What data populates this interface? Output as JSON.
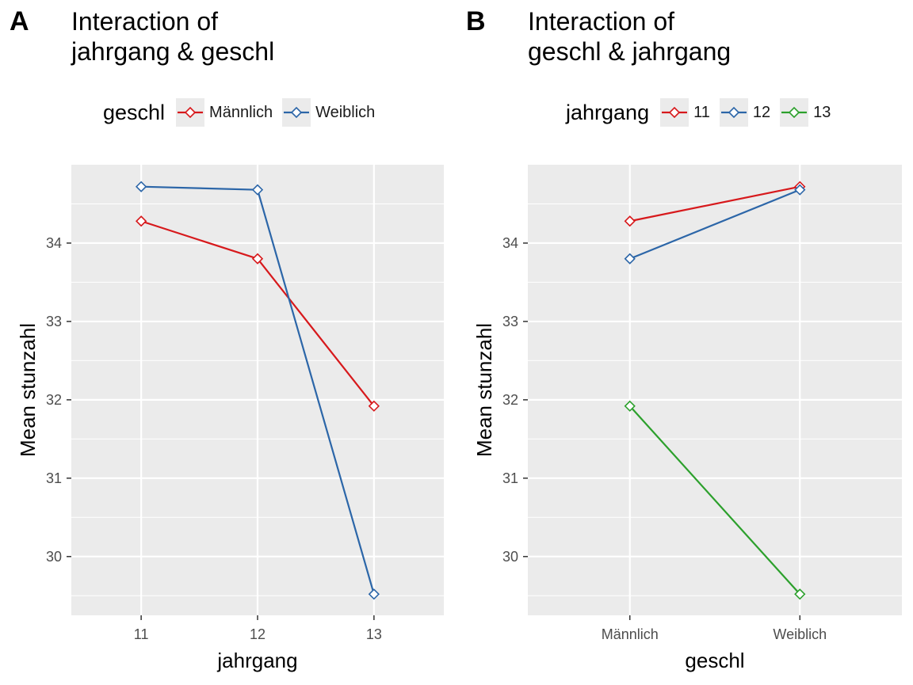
{
  "chart_data": [
    {
      "panel_tag": "A",
      "type": "line",
      "title_lines": [
        "Interaction of",
        "jahrgang & geschl"
      ],
      "xlabel": "jahrgang",
      "ylabel": "Mean stunzahl",
      "legend_title": "geschl",
      "legend_placement": "top",
      "categories": [
        "11",
        "12",
        "13"
      ],
      "xlim": [
        0.4,
        3.6
      ],
      "ylim": [
        29.25,
        35.0
      ],
      "yticks": [
        30,
        31,
        32,
        33,
        34
      ],
      "ytick_labels": [
        "30",
        "31",
        "32",
        "33",
        "34"
      ],
      "grid": true,
      "series": [
        {
          "name": "Männlich",
          "color": "#d7191c",
          "values": [
            34.28,
            33.8,
            31.92
          ]
        },
        {
          "name": "Weiblich",
          "color": "#2c66a8",
          "values": [
            34.72,
            34.68,
            29.52
          ]
        }
      ]
    },
    {
      "panel_tag": "B",
      "type": "line",
      "title_lines": [
        "Interaction of",
        "geschl & jahrgang"
      ],
      "xlabel": "geschl",
      "ylabel": "Mean stunzahl",
      "legend_title": "jahrgang",
      "legend_placement": "top",
      "categories": [
        "Männlich",
        "Weiblich"
      ],
      "xlim": [
        0.4,
        2.6
      ],
      "ylim": [
        29.25,
        35.0
      ],
      "yticks": [
        30,
        31,
        32,
        33,
        34
      ],
      "ytick_labels": [
        "30",
        "31",
        "32",
        "33",
        "34"
      ],
      "grid": true,
      "series": [
        {
          "name": "11",
          "color": "#d7191c",
          "values": [
            34.28,
            34.72
          ]
        },
        {
          "name": "12",
          "color": "#2c66a8",
          "values": [
            33.8,
            34.68
          ]
        },
        {
          "name": "13",
          "color": "#2ca02c",
          "values": [
            31.92,
            29.52
          ]
        }
      ]
    }
  ]
}
